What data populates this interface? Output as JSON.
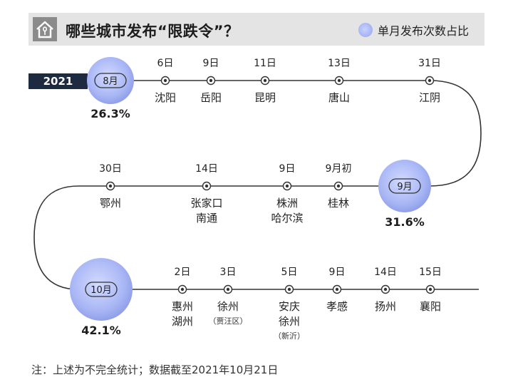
{
  "header": {
    "title": "哪些城市发布“限跌令”？",
    "legend_label": "单月发布次数占比"
  },
  "year": "2021",
  "rows": [
    {
      "month": "8月",
      "percent": "26.3%",
      "events": [
        {
          "date": "6日",
          "cities": [
            "沈阳"
          ]
        },
        {
          "date": "9日",
          "cities": [
            "岳阳"
          ]
        },
        {
          "date": "11日",
          "cities": [
            "昆明"
          ]
        },
        {
          "date": "13日",
          "cities": [
            "唐山"
          ]
        },
        {
          "date": "31日",
          "cities": [
            "江阴"
          ]
        }
      ]
    },
    {
      "month": "9月",
      "percent": "31.6%",
      "events": [
        {
          "date": "30日",
          "cities": [
            "鄂州"
          ]
        },
        {
          "date": "14日",
          "cities": [
            "张家口",
            "南通"
          ]
        },
        {
          "date": "9日",
          "cities": [
            "株洲",
            "哈尔滨"
          ]
        },
        {
          "date": "9月初",
          "cities": [
            "桂林"
          ]
        }
      ]
    },
    {
      "month": "10月",
      "percent": "42.1%",
      "events": [
        {
          "date": "2日",
          "cities": [
            "惠州",
            "湖州"
          ]
        },
        {
          "date": "3日",
          "cities": [
            "徐州"
          ],
          "note": "（贾汪区）"
        },
        {
          "date": "5日",
          "cities": [
            "安庆",
            "徐州"
          ],
          "note": "（新沂）"
        },
        {
          "date": "9日",
          "cities": [
            "孝感"
          ]
        },
        {
          "date": "14日",
          "cities": [
            "扬州"
          ]
        },
        {
          "date": "15日",
          "cities": [
            "襄阳"
          ]
        }
      ]
    }
  ],
  "footnote": "注：上述为不完全统计；数据截至2021年10月21日",
  "colors": {
    "bubble": "#a9b6f5",
    "line": "#333333",
    "badge": "#1d2a3f",
    "header_bg": "#e4e4e4"
  }
}
